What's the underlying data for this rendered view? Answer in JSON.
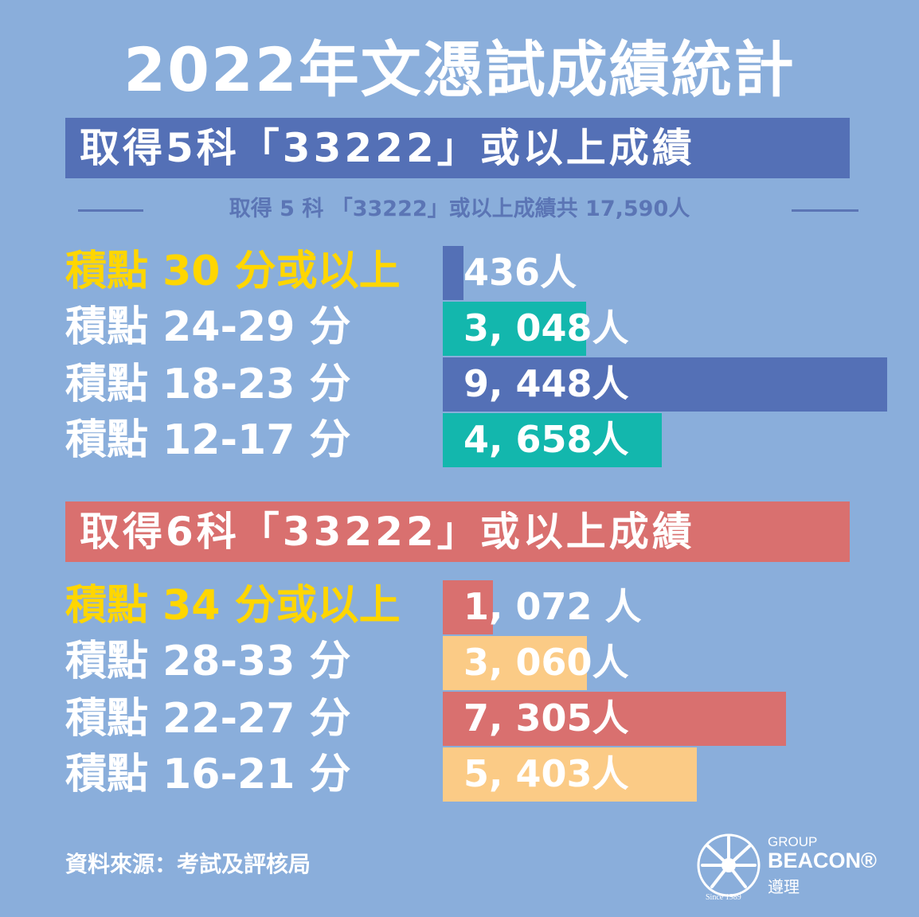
{
  "title": "2022年文憑試成績統計",
  "section1": {
    "banner": "取得5科「33222」或以上成績",
    "subtitle": "取得 5 科 「33222」或以上成績共 17,590人",
    "rows": [
      {
        "label": "積點 30 分或以上",
        "value_label": "436人",
        "highlight": true
      },
      {
        "label": "積點 24-29 分",
        "value_label": "3, 048人",
        "highlight": false
      },
      {
        "label": "積點 18-23 分",
        "value_label": "9, 448人",
        "highlight": false
      },
      {
        "label": "積點 12-17 分",
        "value_label": "4, 658人",
        "highlight": false
      }
    ]
  },
  "section2": {
    "banner": "取得6科「33222」或以上成績",
    "rows": [
      {
        "label": "積點 34 分或以上",
        "value_label": "1, 072 人",
        "highlight": true
      },
      {
        "label": "積點 28-33 分",
        "value_label": "3, 060人",
        "highlight": false
      },
      {
        "label": "積點 22-27 分",
        "value_label": "7, 305人",
        "highlight": false
      },
      {
        "label": "積點 16-21 分",
        "value_label": "5, 403人",
        "highlight": false
      }
    ]
  },
  "source": "資料來源：考試及評核局",
  "logo": {
    "group": "GROUP",
    "brand": "BEACON®",
    "chinese": "遵理",
    "since": "Since 1989"
  },
  "colors": {
    "background": "#8aaedb",
    "blue": "#5470b6",
    "teal": "#13b7ad",
    "red": "#d9706f",
    "yellow": "#fbcb86",
    "highlight_text": "#ffd600"
  },
  "chart_data": [
    {
      "type": "bar",
      "orientation": "horizontal",
      "title": "取得5科「33222」或以上成績",
      "categories": [
        "積點 30 分或以上",
        "積點 24-29 分",
        "積點 18-23 分",
        "積點 12-17 分"
      ],
      "values": [
        436,
        3048,
        9448,
        4658
      ],
      "bar_colors": [
        "#5470b6",
        "#13b7ad",
        "#5470b6",
        "#13b7ad"
      ],
      "xlim": [
        0,
        9448
      ]
    },
    {
      "type": "bar",
      "orientation": "horizontal",
      "title": "取得6科「33222」或以上成績",
      "categories": [
        "積點 34 分或以上",
        "積點 28-33 分",
        "積點 22-27 分",
        "積點 16-21 分"
      ],
      "values": [
        1072,
        3060,
        7305,
        5403
      ],
      "bar_colors": [
        "#d9706f",
        "#fbcb86",
        "#d9706f",
        "#fbcb86"
      ],
      "xlim": [
        0,
        9448
      ]
    }
  ]
}
